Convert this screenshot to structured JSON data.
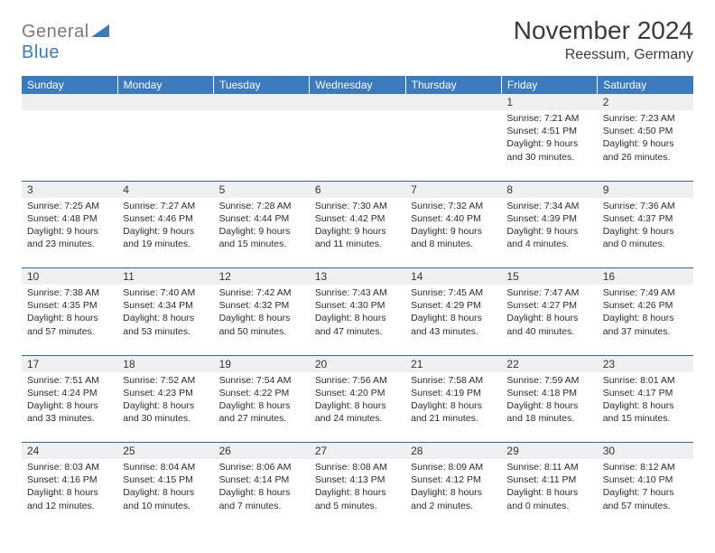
{
  "logo": {
    "part1": "General",
    "part2": "Blue"
  },
  "title": "November 2024",
  "location": "Reessum, Germany",
  "colors": {
    "header_bg": "#3a7abd",
    "header_text": "#ffffff",
    "divider": "#2f6aa8",
    "daynum_bg": "#eef0f2",
    "text": "#2b2b2b",
    "logo_gray": "#7a7a7a",
    "logo_blue": "#3a7abd",
    "page_bg": "#ffffff"
  },
  "headers": [
    "Sunday",
    "Monday",
    "Tuesday",
    "Wednesday",
    "Thursday",
    "Friday",
    "Saturday"
  ],
  "weeks": [
    {
      "nums": [
        "",
        "",
        "",
        "",
        "",
        "1",
        "2"
      ],
      "cells": [
        {
          "empty": true
        },
        {
          "empty": true
        },
        {
          "empty": true
        },
        {
          "empty": true
        },
        {
          "empty": true
        },
        {
          "sunrise": "Sunrise: 7:21 AM",
          "sunset": "Sunset: 4:51 PM",
          "day1": "Daylight: 9 hours",
          "day2": "and 30 minutes."
        },
        {
          "sunrise": "Sunrise: 7:23 AM",
          "sunset": "Sunset: 4:50 PM",
          "day1": "Daylight: 9 hours",
          "day2": "and 26 minutes."
        }
      ]
    },
    {
      "nums": [
        "3",
        "4",
        "5",
        "6",
        "7",
        "8",
        "9"
      ],
      "cells": [
        {
          "sunrise": "Sunrise: 7:25 AM",
          "sunset": "Sunset: 4:48 PM",
          "day1": "Daylight: 9 hours",
          "day2": "and 23 minutes."
        },
        {
          "sunrise": "Sunrise: 7:27 AM",
          "sunset": "Sunset: 4:46 PM",
          "day1": "Daylight: 9 hours",
          "day2": "and 19 minutes."
        },
        {
          "sunrise": "Sunrise: 7:28 AM",
          "sunset": "Sunset: 4:44 PM",
          "day1": "Daylight: 9 hours",
          "day2": "and 15 minutes."
        },
        {
          "sunrise": "Sunrise: 7:30 AM",
          "sunset": "Sunset: 4:42 PM",
          "day1": "Daylight: 9 hours",
          "day2": "and 11 minutes."
        },
        {
          "sunrise": "Sunrise: 7:32 AM",
          "sunset": "Sunset: 4:40 PM",
          "day1": "Daylight: 9 hours",
          "day2": "and 8 minutes."
        },
        {
          "sunrise": "Sunrise: 7:34 AM",
          "sunset": "Sunset: 4:39 PM",
          "day1": "Daylight: 9 hours",
          "day2": "and 4 minutes."
        },
        {
          "sunrise": "Sunrise: 7:36 AM",
          "sunset": "Sunset: 4:37 PM",
          "day1": "Daylight: 9 hours",
          "day2": "and 0 minutes."
        }
      ]
    },
    {
      "nums": [
        "10",
        "11",
        "12",
        "13",
        "14",
        "15",
        "16"
      ],
      "cells": [
        {
          "sunrise": "Sunrise: 7:38 AM",
          "sunset": "Sunset: 4:35 PM",
          "day1": "Daylight: 8 hours",
          "day2": "and 57 minutes."
        },
        {
          "sunrise": "Sunrise: 7:40 AM",
          "sunset": "Sunset: 4:34 PM",
          "day1": "Daylight: 8 hours",
          "day2": "and 53 minutes."
        },
        {
          "sunrise": "Sunrise: 7:42 AM",
          "sunset": "Sunset: 4:32 PM",
          "day1": "Daylight: 8 hours",
          "day2": "and 50 minutes."
        },
        {
          "sunrise": "Sunrise: 7:43 AM",
          "sunset": "Sunset: 4:30 PM",
          "day1": "Daylight: 8 hours",
          "day2": "and 47 minutes."
        },
        {
          "sunrise": "Sunrise: 7:45 AM",
          "sunset": "Sunset: 4:29 PM",
          "day1": "Daylight: 8 hours",
          "day2": "and 43 minutes."
        },
        {
          "sunrise": "Sunrise: 7:47 AM",
          "sunset": "Sunset: 4:27 PM",
          "day1": "Daylight: 8 hours",
          "day2": "and 40 minutes."
        },
        {
          "sunrise": "Sunrise: 7:49 AM",
          "sunset": "Sunset: 4:26 PM",
          "day1": "Daylight: 8 hours",
          "day2": "and 37 minutes."
        }
      ]
    },
    {
      "nums": [
        "17",
        "18",
        "19",
        "20",
        "21",
        "22",
        "23"
      ],
      "cells": [
        {
          "sunrise": "Sunrise: 7:51 AM",
          "sunset": "Sunset: 4:24 PM",
          "day1": "Daylight: 8 hours",
          "day2": "and 33 minutes."
        },
        {
          "sunrise": "Sunrise: 7:52 AM",
          "sunset": "Sunset: 4:23 PM",
          "day1": "Daylight: 8 hours",
          "day2": "and 30 minutes."
        },
        {
          "sunrise": "Sunrise: 7:54 AM",
          "sunset": "Sunset: 4:22 PM",
          "day1": "Daylight: 8 hours",
          "day2": "and 27 minutes."
        },
        {
          "sunrise": "Sunrise: 7:56 AM",
          "sunset": "Sunset: 4:20 PM",
          "day1": "Daylight: 8 hours",
          "day2": "and 24 minutes."
        },
        {
          "sunrise": "Sunrise: 7:58 AM",
          "sunset": "Sunset: 4:19 PM",
          "day1": "Daylight: 8 hours",
          "day2": "and 21 minutes."
        },
        {
          "sunrise": "Sunrise: 7:59 AM",
          "sunset": "Sunset: 4:18 PM",
          "day1": "Daylight: 8 hours",
          "day2": "and 18 minutes."
        },
        {
          "sunrise": "Sunrise: 8:01 AM",
          "sunset": "Sunset: 4:17 PM",
          "day1": "Daylight: 8 hours",
          "day2": "and 15 minutes."
        }
      ]
    },
    {
      "nums": [
        "24",
        "25",
        "26",
        "27",
        "28",
        "29",
        "30"
      ],
      "cells": [
        {
          "sunrise": "Sunrise: 8:03 AM",
          "sunset": "Sunset: 4:16 PM",
          "day1": "Daylight: 8 hours",
          "day2": "and 12 minutes."
        },
        {
          "sunrise": "Sunrise: 8:04 AM",
          "sunset": "Sunset: 4:15 PM",
          "day1": "Daylight: 8 hours",
          "day2": "and 10 minutes."
        },
        {
          "sunrise": "Sunrise: 8:06 AM",
          "sunset": "Sunset: 4:14 PM",
          "day1": "Daylight: 8 hours",
          "day2": "and 7 minutes."
        },
        {
          "sunrise": "Sunrise: 8:08 AM",
          "sunset": "Sunset: 4:13 PM",
          "day1": "Daylight: 8 hours",
          "day2": "and 5 minutes."
        },
        {
          "sunrise": "Sunrise: 8:09 AM",
          "sunset": "Sunset: 4:12 PM",
          "day1": "Daylight: 8 hours",
          "day2": "and 2 minutes."
        },
        {
          "sunrise": "Sunrise: 8:11 AM",
          "sunset": "Sunset: 4:11 PM",
          "day1": "Daylight: 8 hours",
          "day2": "and 0 minutes."
        },
        {
          "sunrise": "Sunrise: 8:12 AM",
          "sunset": "Sunset: 4:10 PM",
          "day1": "Daylight: 7 hours",
          "day2": "and 57 minutes."
        }
      ]
    }
  ]
}
